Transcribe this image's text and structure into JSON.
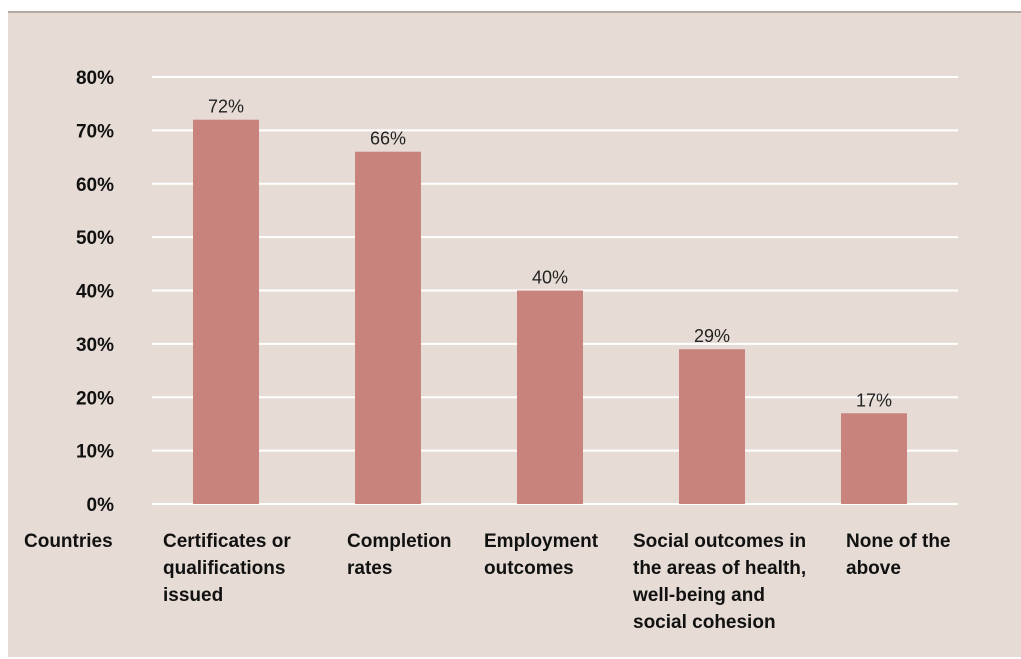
{
  "chart_data": {
    "type": "bar",
    "x_label": "Countries",
    "categories": [
      [
        "Certificates or",
        "qualifications",
        "issued"
      ],
      [
        "Completion",
        "rates"
      ],
      [
        "Employment",
        "outcomes"
      ],
      [
        "Social outcomes in",
        "the areas of health,",
        "well-being and",
        "social cohesion"
      ],
      [
        "None of the",
        "above"
      ]
    ],
    "values": [
      72,
      66,
      40,
      29,
      17
    ],
    "data_labels": [
      "72%",
      "66%",
      "40%",
      "29%",
      "17%"
    ],
    "y_ticks": [
      "0%",
      "10%",
      "20%",
      "30%",
      "40%",
      "50%",
      "60%",
      "70%",
      "80%"
    ],
    "ylim": [
      0,
      80
    ],
    "grid": true,
    "legend": "none",
    "colors": {
      "bar": "#c9837d",
      "panel": "#e6dcd5",
      "grid": "#ffffff"
    }
  }
}
